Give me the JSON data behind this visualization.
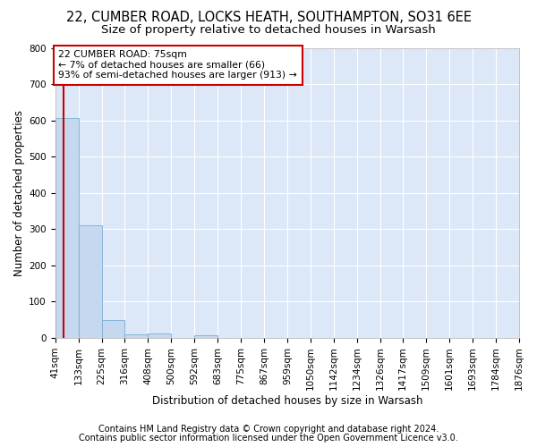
{
  "title1": "22, CUMBER ROAD, LOCKS HEATH, SOUTHAMPTON, SO31 6EE",
  "title2": "Size of property relative to detached houses in Warsash",
  "xlabel": "Distribution of detached houses by size in Warsash",
  "ylabel": "Number of detached properties",
  "footnote1": "Contains HM Land Registry data © Crown copyright and database right 2024.",
  "footnote2": "Contains public sector information licensed under the Open Government Licence v3.0.",
  "bin_edges": [
    41,
    133,
    225,
    316,
    408,
    500,
    592,
    683,
    775,
    867,
    959,
    1050,
    1142,
    1234,
    1326,
    1417,
    1509,
    1601,
    1693,
    1784,
    1876
  ],
  "bar_heights": [
    608,
    310,
    49,
    11,
    13,
    0,
    8,
    0,
    0,
    0,
    0,
    0,
    0,
    0,
    0,
    0,
    0,
    0,
    0,
    0
  ],
  "bar_color": "#c5d8f0",
  "bar_edgecolor": "#7aaed6",
  "property_size": 75,
  "vline_color": "#cc0000",
  "annotation_text": "22 CUMBER ROAD: 75sqm\n← 7% of detached houses are smaller (66)\n93% of semi-detached houses are larger (913) →",
  "annotation_box_facecolor": "#ffffff",
  "annotation_box_edgecolor": "#cc0000",
  "ylim": [
    0,
    800
  ],
  "yticks": [
    0,
    100,
    200,
    300,
    400,
    500,
    600,
    700,
    800
  ],
  "background_color": "#dce8f8",
  "grid_color": "#ffffff",
  "fig_background": "#ffffff",
  "title1_fontsize": 10.5,
  "title2_fontsize": 9.5,
  "axis_label_fontsize": 8.5,
  "tick_fontsize": 7.5,
  "footnote_fontsize": 7
}
